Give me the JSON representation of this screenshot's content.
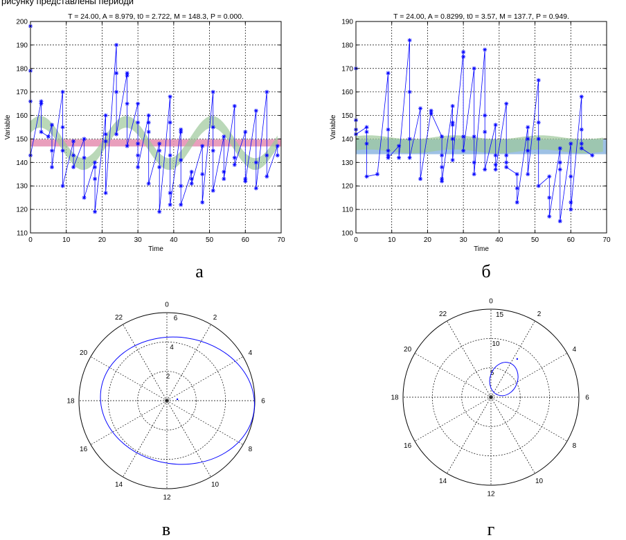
{
  "header_fragment": "рисунку представлены периоди",
  "chart_data": [
    {
      "type": "scatter",
      "panel": "a",
      "caption": "а",
      "title": "T = 24.00, A = 8.979, t0 = 2.722, M = 148.3, P = 0.000.",
      "xlabel": "Time",
      "ylabel": "Variable",
      "xlim": [
        0,
        70
      ],
      "ylim": [
        110,
        200
      ],
      "xticks": [
        0,
        10,
        20,
        30,
        40,
        50,
        60,
        70
      ],
      "yticks": [
        110,
        120,
        130,
        140,
        150,
        160,
        170,
        180,
        190,
        200
      ],
      "grid": true,
      "fit": {
        "period": 24.0,
        "amplitude": 8.979,
        "t0": 2.722,
        "mean": 148.3,
        "band": 2.5
      },
      "mean_band": {
        "low": 146.8,
        "high": 149.8
      },
      "series": [
        {
          "values": [
            [
              0,
              198
            ],
            [
              0,
              179
            ],
            [
              0,
              166
            ],
            [
              0,
              143
            ],
            [
              3,
              166
            ],
            [
              3,
              165
            ],
            [
              3,
              153
            ],
            [
              5,
              151
            ],
            [
              6,
              156
            ],
            [
              6,
              145
            ],
            [
              6,
              138
            ],
            [
              9,
              170
            ],
            [
              9,
              155
            ],
            [
              9,
              145
            ],
            [
              9,
              130
            ],
            [
              12,
              149
            ],
            [
              12,
              143
            ],
            [
              12,
              138
            ],
            [
              15,
              150
            ],
            [
              15,
              142
            ],
            [
              15,
              125
            ],
            [
              18,
              140
            ],
            [
              18,
              138
            ],
            [
              18,
              133
            ],
            [
              18,
              119
            ],
            [
              21,
              160
            ],
            [
              21,
              152
            ],
            [
              21,
              149
            ],
            [
              21,
              127
            ],
            [
              24,
              190
            ],
            [
              24,
              178
            ],
            [
              24,
              170
            ],
            [
              24,
              152
            ],
            [
              27,
              178
            ],
            [
              27,
              177
            ],
            [
              27,
              165
            ],
            [
              27,
              147
            ],
            [
              30,
              165
            ],
            [
              30,
              157
            ],
            [
              30,
              148
            ],
            [
              30,
              143
            ],
            [
              30,
              138
            ],
            [
              33,
              160
            ],
            [
              33,
              157
            ],
            [
              33,
              153
            ],
            [
              33,
              131
            ],
            [
              36,
              148
            ],
            [
              36,
              145
            ],
            [
              36,
              138
            ],
            [
              36,
              119
            ],
            [
              39,
              168
            ],
            [
              39,
              157
            ],
            [
              39,
              143
            ],
            [
              39,
              127
            ],
            [
              39,
              122
            ],
            [
              42,
              154
            ],
            [
              42,
              153
            ],
            [
              42,
              141
            ],
            [
              42,
              130
            ],
            [
              42,
              122
            ],
            [
              45,
              136
            ],
            [
              45,
              133
            ],
            [
              45,
              131
            ],
            [
              48,
              147
            ],
            [
              48,
              135
            ],
            [
              48,
              123
            ],
            [
              51,
              170
            ],
            [
              51,
              155
            ],
            [
              51,
              145
            ],
            [
              51,
              128
            ],
            [
              54,
              151
            ],
            [
              54,
              136
            ],
            [
              54,
              133
            ],
            [
              57,
              164
            ],
            [
              57,
              142
            ],
            [
              57,
              139
            ],
            [
              60,
              153
            ],
            [
              60,
              133
            ],
            [
              60,
              132
            ],
            [
              63,
              162
            ],
            [
              63,
              140
            ],
            [
              63,
              129
            ],
            [
              66,
              170
            ],
            [
              66,
              143
            ],
            [
              66,
              134
            ],
            [
              69,
              147
            ],
            [
              69,
              143
            ]
          ]
        }
      ]
    },
    {
      "type": "scatter",
      "panel": "b",
      "caption": "б",
      "title": "T = 24.00, A = 0.8299, t0 = 3.57, M = 137.7, P = 0.949.",
      "xlabel": "Time",
      "ylabel": "Variable",
      "xlim": [
        0,
        70
      ],
      "ylim": [
        100,
        190
      ],
      "xticks": [
        0,
        10,
        20,
        30,
        40,
        50,
        60,
        70
      ],
      "yticks": [
        100,
        110,
        120,
        130,
        140,
        150,
        160,
        170,
        180,
        190
      ],
      "grid": true,
      "fit": {
        "period": 24.0,
        "amplitude": 0.8299,
        "t0": 3.57,
        "mean": 137.7,
        "band": 3.0
      },
      "mean_band": {
        "low": 133.5,
        "high": 139.8
      },
      "series": [
        {
          "values": [
            [
              0,
              170
            ],
            [
              0,
              148
            ],
            [
              0,
              144
            ],
            [
              0,
              142
            ],
            [
              3,
              145
            ],
            [
              3,
              143
            ],
            [
              3,
              138
            ],
            [
              3,
              124
            ],
            [
              6,
              125
            ],
            [
              9,
              168
            ],
            [
              9,
              144
            ],
            [
              9,
              135
            ],
            [
              9,
              133
            ],
            [
              9,
              132
            ],
            [
              12,
              137
            ],
            [
              12,
              132
            ],
            [
              15,
              182
            ],
            [
              15,
              160
            ],
            [
              15,
              140
            ],
            [
              15,
              132
            ],
            [
              18,
              153
            ],
            [
              18,
              123
            ],
            [
              21,
              152
            ],
            [
              21,
              151
            ],
            [
              24,
              141
            ],
            [
              24,
              133
            ],
            [
              24,
              128
            ],
            [
              24,
              123
            ],
            [
              24,
              122
            ],
            [
              27,
              154
            ],
            [
              27,
              147
            ],
            [
              27,
              146
            ],
            [
              27,
              140
            ],
            [
              27,
              131
            ],
            [
              30,
              177
            ],
            [
              30,
              175
            ],
            [
              30,
              141
            ],
            [
              30,
              135
            ],
            [
              33,
              170
            ],
            [
              33,
              141
            ],
            [
              33,
              130
            ],
            [
              33,
              125
            ],
            [
              36,
              178
            ],
            [
              36,
              150
            ],
            [
              36,
              143
            ],
            [
              36,
              127
            ],
            [
              39,
              146
            ],
            [
              39,
              133
            ],
            [
              39,
              129
            ],
            [
              39,
              127
            ],
            [
              42,
              155
            ],
            [
              42,
              133
            ],
            [
              42,
              130
            ],
            [
              42,
              128
            ],
            [
              45,
              125
            ],
            [
              45,
              119
            ],
            [
              45,
              113
            ],
            [
              48,
              145
            ],
            [
              48,
              140
            ],
            [
              48,
              135
            ],
            [
              48,
              125
            ],
            [
              51,
              165
            ],
            [
              51,
              147
            ],
            [
              51,
              140
            ],
            [
              51,
              120
            ],
            [
              54,
              124
            ],
            [
              54,
              115
            ],
            [
              54,
              107
            ],
            [
              57,
              136
            ],
            [
              57,
              130
            ],
            [
              57,
              127
            ],
            [
              57,
              105
            ],
            [
              60,
              138
            ],
            [
              60,
              124
            ],
            [
              60,
              113
            ],
            [
              60,
              110
            ],
            [
              63,
              158
            ],
            [
              63,
              144
            ],
            [
              63,
              138
            ],
            [
              63,
              136
            ],
            [
              66,
              133
            ]
          ]
        }
      ]
    },
    {
      "type": "polar",
      "panel": "c",
      "caption": "в",
      "hour_labels": [
        "0",
        "2",
        "4",
        "6",
        "8",
        "10",
        "12",
        "14",
        "16",
        "18",
        "20",
        "22"
      ],
      "radial_ticks": [
        "2",
        "4",
        "6"
      ],
      "r_max": 6,
      "point": {
        "hour": 5.5,
        "r": 0.72
      },
      "ellipse": {
        "cx": 0.72,
        "cy": 0.0,
        "rx": 5.27,
        "ry": 4.32,
        "rotation_deg": 8
      }
    },
    {
      "type": "polar",
      "panel": "d",
      "caption": "г",
      "hour_labels": [
        "0",
        "2",
        "4",
        "6",
        "8",
        "10",
        "12",
        "14",
        "16",
        "18",
        "20",
        "22"
      ],
      "radial_ticks": [
        "5",
        "10",
        "15"
      ],
      "r_max": 15,
      "point": {
        "hour": 2.3,
        "r": 7.9
      },
      "ellipse": {
        "cx": 2.2,
        "cy": 3.1,
        "rx": 2.35,
        "ry": 2.9,
        "rotation_deg": 20
      }
    }
  ]
}
